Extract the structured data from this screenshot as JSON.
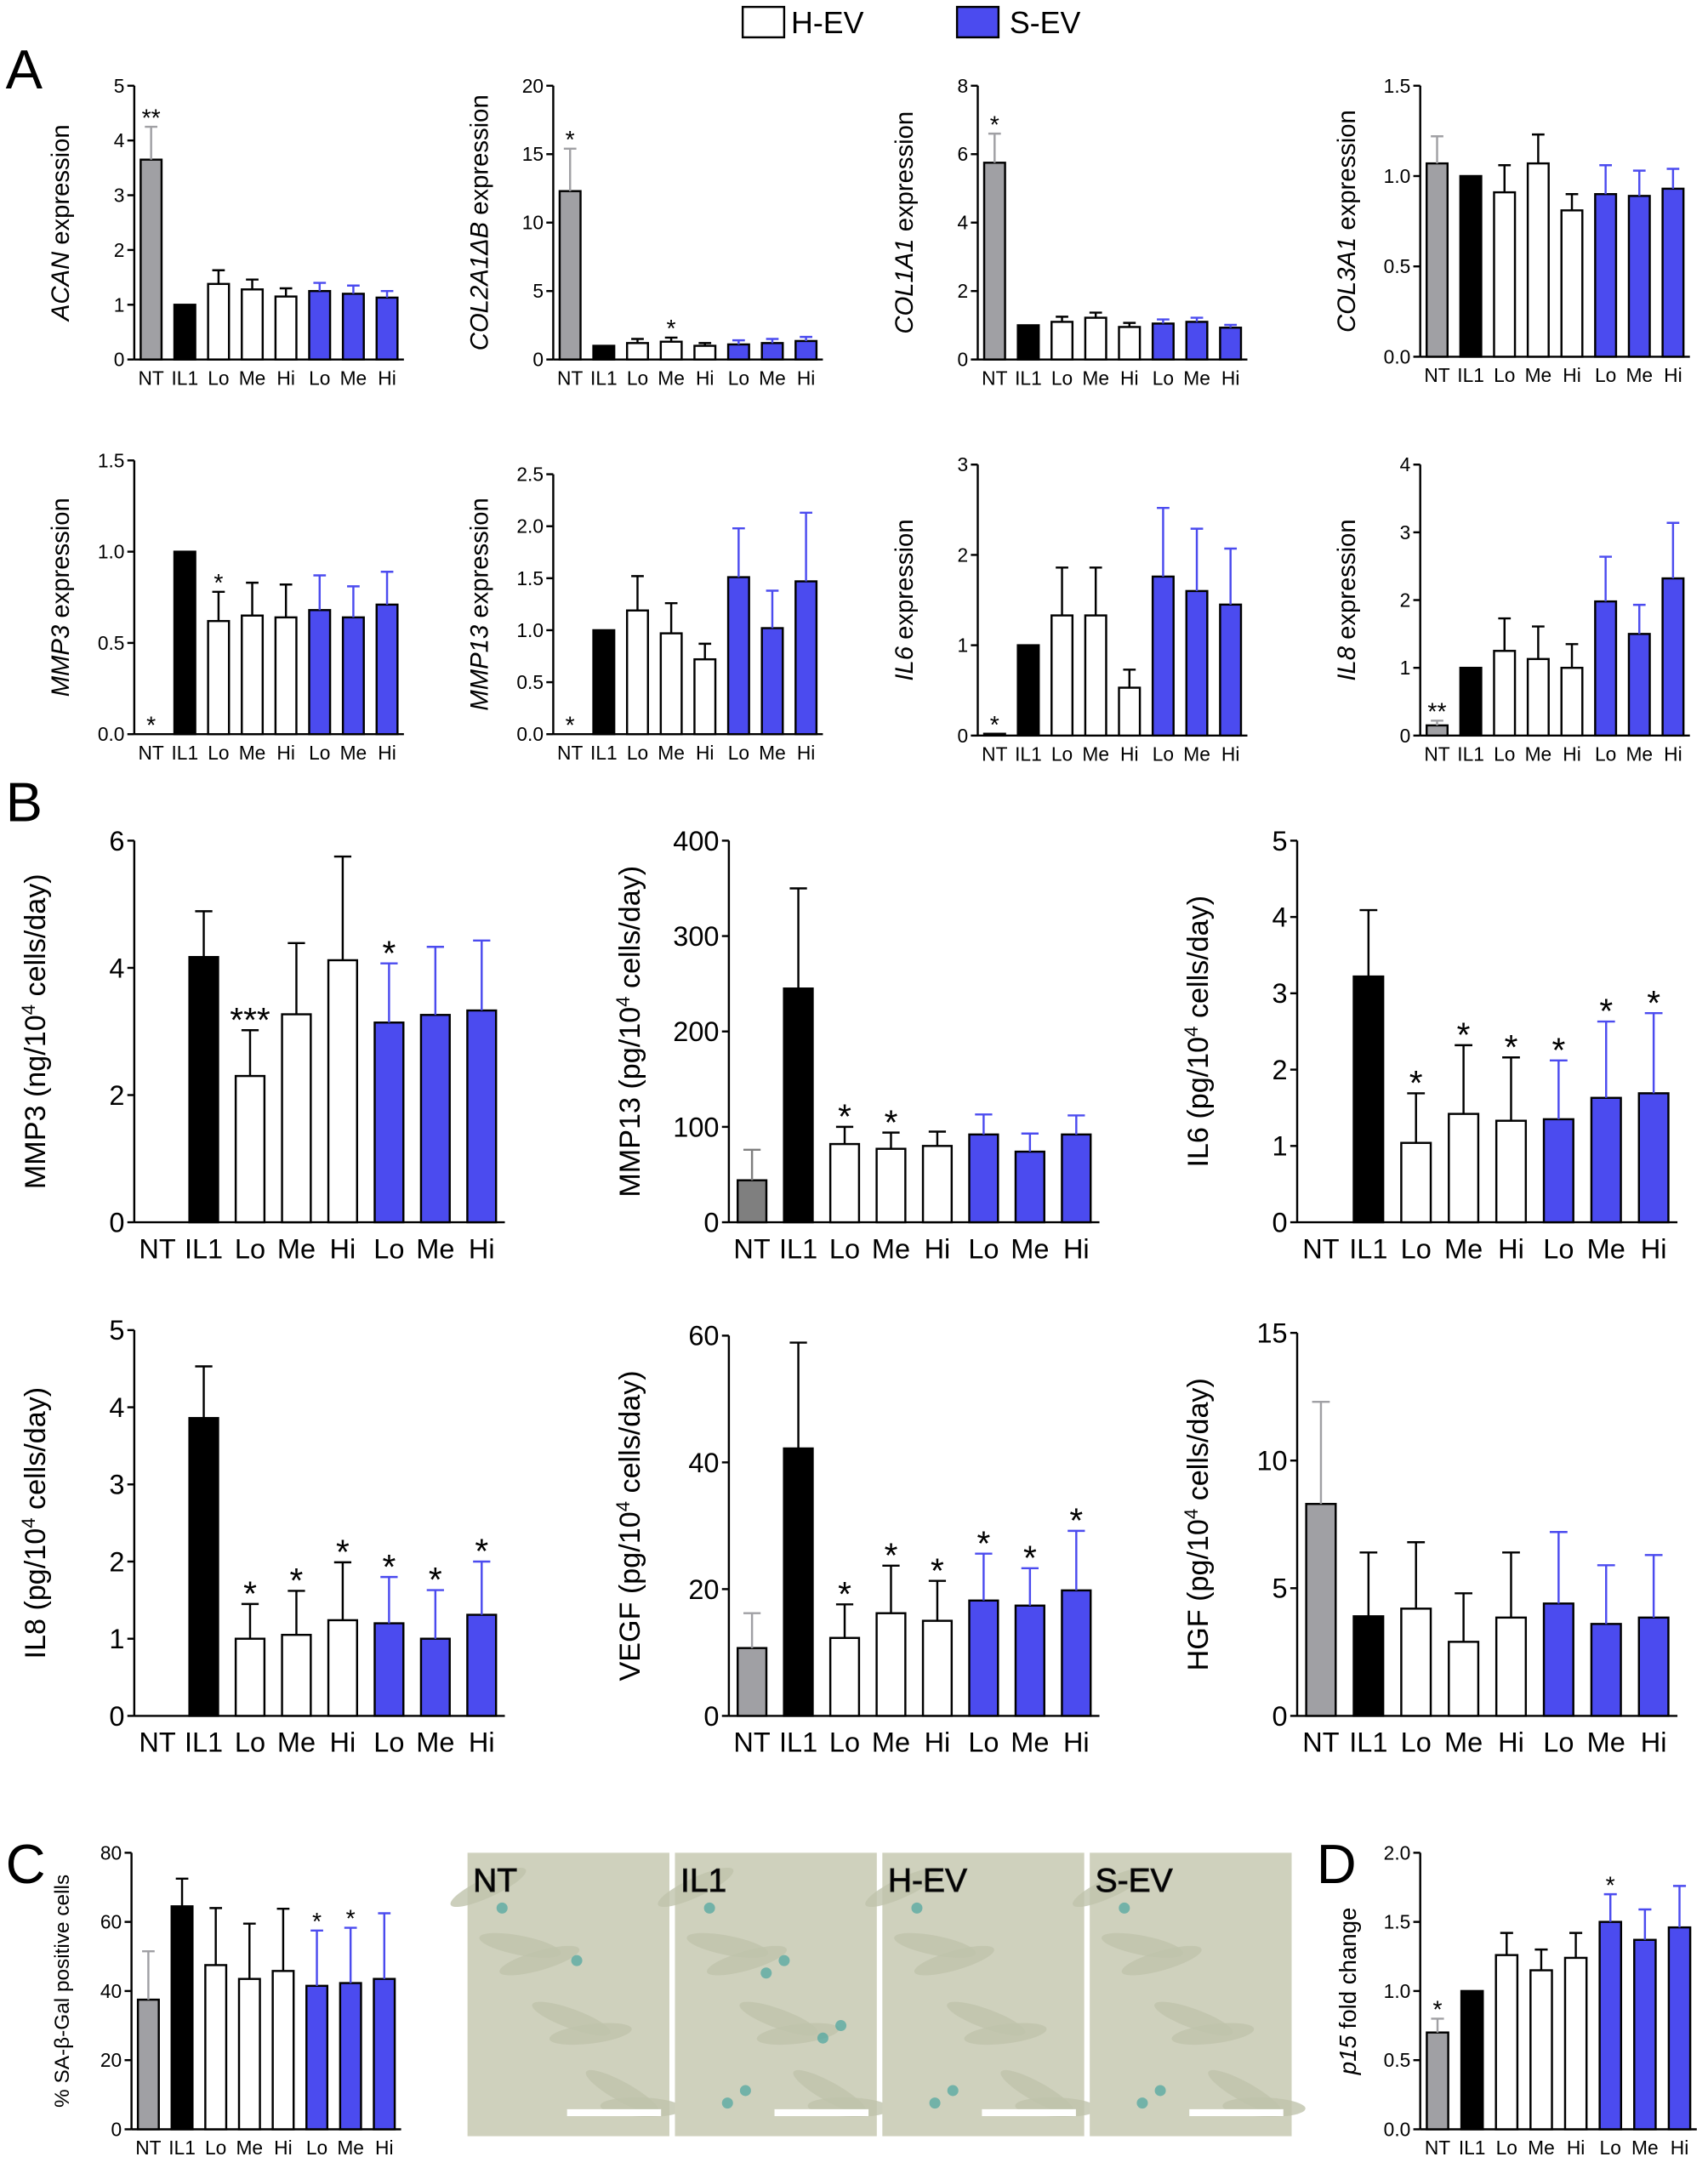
{
  "panels": [
    "A",
    "B",
    "C",
    "D"
  ],
  "legend": [
    {
      "name": "H-EV",
      "color": "#ffffff"
    },
    {
      "name": "S-EV",
      "color": "#4b4bef"
    }
  ],
  "micrographs": [
    "NT",
    "IL1",
    "H-EV",
    "S-EV"
  ],
  "chart_data": [
    {
      "type": "bar",
      "ylabel": [
        {
          "text": "ACAN",
          "style": "italic"
        },
        {
          "text": " expression",
          "style": "normal"
        }
      ],
      "categories": [
        "NT",
        "IL1",
        "Lo",
        "Me",
        "Hi",
        "Lo",
        "Me",
        "Hi"
      ],
      "colors": [
        "#a0a0a4",
        "#000000",
        "#ffffff",
        "#ffffff",
        "#ffffff",
        "#4b4bef",
        "#4b4bef",
        "#4b4bef"
      ],
      "values": [
        3.65,
        1.0,
        1.38,
        1.28,
        1.15,
        1.25,
        1.2,
        1.13
      ],
      "errors": [
        0.6,
        0,
        0.25,
        0.18,
        0.15,
        0.15,
        0.15,
        0.12
      ],
      "significance": [
        "**",
        null,
        null,
        null,
        null,
        null,
        null,
        null
      ],
      "ylim": [
        0,
        5
      ],
      "yticks": [
        0,
        1,
        2,
        3,
        4,
        5
      ]
    },
    {
      "type": "bar",
      "ylabel": [
        {
          "text": "COL2A1ΔB",
          "style": "italic"
        },
        {
          "text": " expression",
          "style": "normal"
        }
      ],
      "categories": [
        "NT",
        "IL1",
        "Lo",
        "Me",
        "Hi",
        "Lo",
        "Me",
        "Hi"
      ],
      "colors": [
        "#a0a0a4",
        "#000000",
        "#ffffff",
        "#ffffff",
        "#ffffff",
        "#4b4bef",
        "#4b4bef",
        "#4b4bef"
      ],
      "values": [
        12.3,
        1.0,
        1.2,
        1.3,
        1.0,
        1.1,
        1.2,
        1.35
      ],
      "errors": [
        3.1,
        0,
        0.3,
        0.3,
        0.2,
        0.3,
        0.3,
        0.3
      ],
      "significance": [
        "*",
        null,
        null,
        "*",
        null,
        null,
        null,
        null
      ],
      "ylim": [
        0,
        20
      ],
      "yticks": [
        0,
        5,
        10,
        15,
        20
      ]
    },
    {
      "type": "bar",
      "ylabel": [
        {
          "text": "COL1A1",
          "style": "italic"
        },
        {
          "text": " expression",
          "style": "normal"
        }
      ],
      "categories": [
        "NT",
        "IL1",
        "Lo",
        "Me",
        "Hi",
        "Lo",
        "Me",
        "Hi"
      ],
      "colors": [
        "#a0a0a4",
        "#000000",
        "#ffffff",
        "#ffffff",
        "#ffffff",
        "#4b4bef",
        "#4b4bef",
        "#4b4bef"
      ],
      "values": [
        5.75,
        1.0,
        1.1,
        1.22,
        0.95,
        1.05,
        1.1,
        0.93
      ],
      "errors": [
        0.85,
        0,
        0.15,
        0.15,
        0.12,
        0.12,
        0.12,
        0.08
      ],
      "significance": [
        "*",
        null,
        null,
        null,
        null,
        null,
        null,
        null
      ],
      "ylim": [
        0,
        8
      ],
      "yticks": [
        0,
        2,
        4,
        6,
        8
      ]
    },
    {
      "type": "bar",
      "ylabel": [
        {
          "text": "COL3A1",
          "style": "italic"
        },
        {
          "text": " expression",
          "style": "normal"
        }
      ],
      "categories": [
        "NT",
        "IL1",
        "Lo",
        "Me",
        "Hi",
        "Lo",
        "Me",
        "Hi"
      ],
      "colors": [
        "#a0a0a4",
        "#000000",
        "#ffffff",
        "#ffffff",
        "#ffffff",
        "#4b4bef",
        "#4b4bef",
        "#4b4bef"
      ],
      "values": [
        1.07,
        1.0,
        0.91,
        1.07,
        0.81,
        0.9,
        0.89,
        0.93
      ],
      "errors": [
        0.15,
        0,
        0.15,
        0.16,
        0.09,
        0.16,
        0.14,
        0.11
      ],
      "significance": [
        null,
        null,
        null,
        null,
        null,
        null,
        null,
        null
      ],
      "ylim": [
        0,
        1.5
      ],
      "yticks": [
        {
          "value": 0,
          "label": "0.0"
        },
        {
          "value": 0.5,
          "label": "0.5"
        },
        {
          "value": 1,
          "label": "1.0"
        },
        {
          "value": 1.5,
          "label": "1.5"
        }
      ]
    },
    {
      "type": "bar",
      "ylabel": [
        {
          "text": "MMP3",
          "style": "italic"
        },
        {
          "text": " expression",
          "style": "normal"
        }
      ],
      "categories": [
        "NT",
        "IL1",
        "Lo",
        "Me",
        "Hi",
        "Lo",
        "Me",
        "Hi"
      ],
      "colors": [
        "#a0a0a4",
        "#000000",
        "#ffffff",
        "#ffffff",
        "#ffffff",
        "#4b4bef",
        "#4b4bef",
        "#4b4bef"
      ],
      "values": [
        0,
        1.0,
        0.62,
        0.65,
        0.64,
        0.68,
        0.64,
        0.71
      ],
      "errors": [
        0,
        0,
        0.16,
        0.18,
        0.18,
        0.19,
        0.17,
        0.18
      ],
      "significance": [
        "*",
        null,
        "*",
        null,
        null,
        null,
        null,
        null
      ],
      "ylim": [
        0,
        1.5
      ],
      "yticks": [
        {
          "value": 0,
          "label": "0.0"
        },
        {
          "value": 0.5,
          "label": "0.5"
        },
        {
          "value": 1,
          "label": "1.0"
        },
        {
          "value": 1.5,
          "label": "1.5"
        }
      ]
    },
    {
      "type": "bar",
      "ylabel": [
        {
          "text": "MMP13",
          "style": "italic"
        },
        {
          "text": " expression",
          "style": "normal"
        }
      ],
      "categories": [
        "NT",
        "IL1",
        "Lo",
        "Me",
        "Hi",
        "Lo",
        "Me",
        "Hi"
      ],
      "colors": [
        "#a0a0a4",
        "#000000",
        "#ffffff",
        "#ffffff",
        "#ffffff",
        "#4b4bef",
        "#4b4bef",
        "#4b4bef"
      ],
      "values": [
        0,
        1.0,
        1.19,
        0.97,
        0.72,
        1.51,
        1.02,
        1.47
      ],
      "errors": [
        0,
        0,
        0.33,
        0.29,
        0.15,
        0.47,
        0.36,
        0.66
      ],
      "significance": [
        "*",
        null,
        null,
        null,
        null,
        null,
        null,
        null
      ],
      "ylim": [
        0,
        2.5
      ],
      "yticks": [
        {
          "value": 0,
          "label": "0.0"
        },
        {
          "value": 0.5,
          "label": "0.5"
        },
        {
          "value": 1,
          "label": "1.0"
        },
        {
          "value": 1.5,
          "label": "1.5"
        },
        {
          "value": 2,
          "label": "2.0"
        },
        {
          "value": 2.5,
          "label": "2.5"
        }
      ]
    },
    {
      "type": "bar",
      "ylabel": [
        {
          "text": "IL6",
          "style": "italic"
        },
        {
          "text": " expression",
          "style": "normal"
        }
      ],
      "categories": [
        "NT",
        "IL1",
        "Lo",
        "Me",
        "Hi",
        "Lo",
        "Me",
        "Hi"
      ],
      "colors": [
        "#a0a0a4",
        "#000000",
        "#ffffff",
        "#ffffff",
        "#ffffff",
        "#4b4bef",
        "#4b4bef",
        "#4b4bef"
      ],
      "values": [
        0.02,
        1.0,
        1.33,
        1.33,
        0.53,
        1.76,
        1.6,
        1.45
      ],
      "errors": [
        0,
        0,
        0.53,
        0.53,
        0.2,
        0.76,
        0.69,
        0.62
      ],
      "significance": [
        "*",
        null,
        null,
        null,
        null,
        null,
        null,
        null
      ],
      "ylim": [
        0,
        3
      ],
      "yticks": [
        0,
        1,
        2,
        3
      ]
    },
    {
      "type": "bar",
      "ylabel": [
        {
          "text": "IL8",
          "style": "italic"
        },
        {
          "text": " expression",
          "style": "normal"
        }
      ],
      "categories": [
        "NT",
        "IL1",
        "Lo",
        "Me",
        "Hi",
        "Lo",
        "Me",
        "Hi"
      ],
      "colors": [
        "#a0a0a4",
        "#000000",
        "#ffffff",
        "#ffffff",
        "#ffffff",
        "#4b4bef",
        "#4b4bef",
        "#4b4bef"
      ],
      "values": [
        0.15,
        1.0,
        1.25,
        1.13,
        1.0,
        1.98,
        1.5,
        2.32
      ],
      "errors": [
        0.07,
        0,
        0.48,
        0.48,
        0.35,
        0.66,
        0.43,
        0.82
      ],
      "significance": [
        "**",
        null,
        null,
        null,
        null,
        null,
        null,
        null
      ],
      "ylim": [
        0,
        4
      ],
      "yticks": [
        0,
        1,
        2,
        3,
        4
      ]
    },
    {
      "type": "bar",
      "ylabel": [
        {
          "text": "MMP3 (ng/10",
          "style": "normal"
        },
        {
          "text": "4",
          "style": "sup"
        },
        {
          "text": " cells/day)",
          "style": "normal"
        }
      ],
      "categories": [
        "NT",
        "IL1",
        "Lo",
        "Me",
        "Hi",
        "Lo",
        "Me",
        "Hi"
      ],
      "colors": [
        "#a0a0a4",
        "#000000",
        "#ffffff",
        "#ffffff",
        "#ffffff",
        "#4b4bef",
        "#4b4bef",
        "#4b4bef"
      ],
      "values": [
        null,
        4.17,
        2.3,
        3.27,
        4.12,
        3.14,
        3.26,
        3.33
      ],
      "errors": [
        null,
        0.72,
        0.72,
        1.12,
        1.63,
        0.93,
        1.07,
        1.1
      ],
      "significance": [
        null,
        null,
        "***",
        null,
        null,
        "*",
        null,
        null
      ],
      "ylim": [
        0,
        6
      ],
      "yticks": [
        0,
        2,
        4,
        6
      ]
    },
    {
      "type": "bar",
      "ylabel": [
        {
          "text": "MMP13 (pg/10",
          "style": "normal"
        },
        {
          "text": "4",
          "style": "sup"
        },
        {
          "text": " cells/day)",
          "style": "normal"
        }
      ],
      "categories": [
        "NT",
        "IL1",
        "Lo",
        "Me",
        "Hi",
        "Lo",
        "Me",
        "Hi"
      ],
      "colors": [
        "#7f7f7f",
        "#000000",
        "#ffffff",
        "#ffffff",
        "#ffffff",
        "#4b4bef",
        "#4b4bef",
        "#4b4bef"
      ],
      "values": [
        44,
        245,
        82,
        77,
        80,
        92,
        74,
        92
      ],
      "errors": [
        32,
        105,
        18,
        17,
        15,
        21,
        19,
        20
      ],
      "significance": [
        null,
        null,
        "*",
        "*",
        null,
        null,
        null,
        null
      ],
      "ylim": [
        0,
        400
      ],
      "yticks": [
        0,
        100,
        200,
        300,
        400
      ]
    },
    {
      "type": "bar",
      "ylabel": [
        {
          "text": "IL6 (pg/10",
          "style": "normal"
        },
        {
          "text": "4",
          "style": "sup"
        },
        {
          "text": " cells/day)",
          "style": "normal"
        }
      ],
      "categories": [
        "NT",
        "IL1",
        "Lo",
        "Me",
        "Hi",
        "Lo",
        "Me",
        "Hi"
      ],
      "colors": [
        "#a0a0a4",
        "#000000",
        "#ffffff",
        "#ffffff",
        "#ffffff",
        "#4b4bef",
        "#4b4bef",
        "#4b4bef"
      ],
      "values": [
        null,
        3.22,
        1.04,
        1.42,
        1.33,
        1.35,
        1.63,
        1.69
      ],
      "errors": [
        null,
        0.87,
        0.65,
        0.9,
        0.83,
        0.77,
        1.0,
        1.05
      ],
      "significance": [
        null,
        null,
        "*",
        "*",
        "*",
        "*",
        "*",
        "*"
      ],
      "ylim": [
        0,
        5
      ],
      "yticks": [
        0,
        1,
        2,
        3,
        4,
        5
      ]
    },
    {
      "type": "bar",
      "ylabel": [
        {
          "text": "IL8 (pg/10",
          "style": "normal"
        },
        {
          "text": "4",
          "style": "sup"
        },
        {
          "text": " cells/day)",
          "style": "normal"
        }
      ],
      "categories": [
        "NT",
        "IL1",
        "Lo",
        "Me",
        "Hi",
        "Lo",
        "Me",
        "Hi"
      ],
      "colors": [
        "#a0a0a4",
        "#000000",
        "#ffffff",
        "#ffffff",
        "#ffffff",
        "#4b4bef",
        "#4b4bef",
        "#4b4bef"
      ],
      "values": [
        null,
        3.86,
        1.0,
        1.05,
        1.24,
        1.2,
        1.0,
        1.31
      ],
      "errors": [
        null,
        0.67,
        0.45,
        0.57,
        0.75,
        0.6,
        0.63,
        0.69
      ],
      "significance": [
        null,
        null,
        "*",
        "*",
        "*",
        "*",
        "*",
        "*"
      ],
      "ylim": [
        0,
        5
      ],
      "yticks": [
        0,
        1,
        2,
        3,
        4,
        5
      ]
    },
    {
      "type": "bar",
      "ylabel": [
        {
          "text": "VEGF (pg/10",
          "style": "normal"
        },
        {
          "text": "4",
          "style": "sup"
        },
        {
          "text": " cells/day)",
          "style": "normal"
        }
      ],
      "categories": [
        "NT",
        "IL1",
        "Lo",
        "Me",
        "Hi",
        "Lo",
        "Me",
        "Hi"
      ],
      "colors": [
        "#a0a0a4",
        "#000000",
        "#ffffff",
        "#ffffff",
        "#ffffff",
        "#4b4bef",
        "#4b4bef",
        "#4b4bef"
      ],
      "values": [
        10.7,
        42.2,
        12.3,
        16.2,
        15,
        18.2,
        17.4,
        19.8
      ],
      "errors": [
        5.5,
        16.7,
        5.3,
        7.5,
        6.3,
        7.4,
        5.9,
        9.4
      ],
      "significance": [
        null,
        null,
        "*",
        "*",
        "*",
        "*",
        "*",
        "*"
      ],
      "ylim": [
        0,
        60
      ],
      "yticks": [
        0,
        20,
        40,
        60
      ]
    },
    {
      "type": "bar",
      "ylabel": [
        {
          "text": "HGF (pg/10",
          "style": "normal"
        },
        {
          "text": "4",
          "style": "sup"
        },
        {
          "text": " cells/day)",
          "style": "normal"
        }
      ],
      "categories": [
        "NT",
        "IL1",
        "Lo",
        "Me",
        "Hi",
        "Lo",
        "Me",
        "Hi"
      ],
      "colors": [
        "#a0a0a4",
        "#000000",
        "#ffffff",
        "#ffffff",
        "#ffffff",
        "#4b4bef",
        "#4b4bef",
        "#4b4bef"
      ],
      "values": [
        8.3,
        3.9,
        4.2,
        2.9,
        3.85,
        4.4,
        3.6,
        3.85
      ],
      "errors": [
        4,
        2.5,
        2.6,
        1.9,
        2.55,
        2.8,
        2.3,
        2.45
      ],
      "significance": [
        null,
        null,
        null,
        null,
        null,
        null,
        null,
        null
      ],
      "ylim": [
        0,
        15
      ],
      "yticks": [
        0,
        5,
        10,
        15
      ]
    },
    {
      "type": "bar",
      "ylabel": [
        {
          "text": "% SA-β-Gal positive cells",
          "style": "normal"
        }
      ],
      "categories": [
        "NT",
        "IL1",
        "Lo",
        "Me",
        "Hi",
        "Lo",
        "Me",
        "Hi"
      ],
      "colors": [
        "#a0a0a4",
        "#000000",
        "#ffffff",
        "#ffffff",
        "#ffffff",
        "#4b4bef",
        "#4b4bef",
        "#4b4bef"
      ],
      "values": [
        37.5,
        64.5,
        47.5,
        43.5,
        45.8,
        41.5,
        42.3,
        43.5
      ],
      "errors": [
        14,
        8,
        16.5,
        16,
        18,
        16,
        16,
        19
      ],
      "significance": [
        null,
        null,
        null,
        null,
        null,
        "*",
        "*",
        null
      ],
      "ylim": [
        0,
        80
      ],
      "yticks": [
        0,
        20,
        40,
        60,
        80
      ]
    },
    {
      "type": "bar",
      "ylabel": [
        {
          "text": "p15",
          "style": "italic"
        },
        {
          "text": " fold change",
          "style": "normal"
        }
      ],
      "categories": [
        "NT",
        "IL1",
        "Lo",
        "Me",
        "Hi",
        "Lo",
        "Me",
        "Hi"
      ],
      "colors": [
        "#a0a0a4",
        "#000000",
        "#ffffff",
        "#ffffff",
        "#ffffff",
        "#4b4bef",
        "#4b4bef",
        "#4b4bef"
      ],
      "values": [
        0.7,
        1.0,
        1.26,
        1.15,
        1.24,
        1.5,
        1.37,
        1.46
      ],
      "errors": [
        0.1,
        0,
        0.16,
        0.15,
        0.18,
        0.2,
        0.22,
        0.3
      ],
      "significance": [
        "*",
        null,
        null,
        null,
        null,
        "*",
        null,
        null
      ],
      "ylim": [
        0,
        2
      ],
      "yticks": [
        {
          "value": 0,
          "label": "0.0"
        },
        {
          "value": 0.5,
          "label": "0.5"
        },
        {
          "value": 1,
          "label": "1.0"
        },
        {
          "value": 1.5,
          "label": "1.5"
        },
        {
          "value": 2,
          "label": "2.0"
        }
      ]
    }
  ]
}
